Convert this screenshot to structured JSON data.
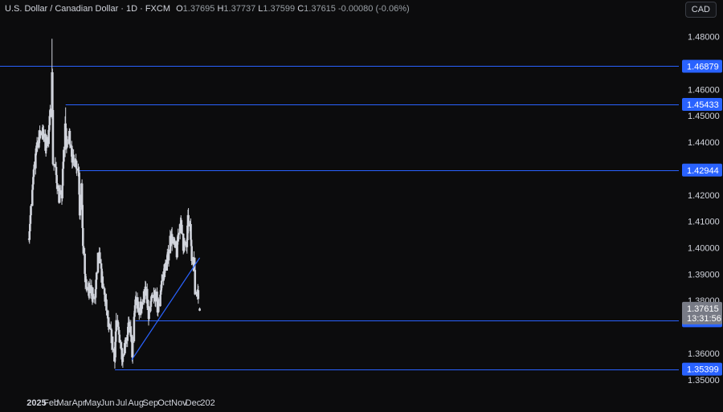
{
  "header": {
    "symbol": "U.S. Dollar / Canadian Dollar · 1D · FXCM",
    "o_label": "O",
    "o_value": "1.37695",
    "h_label": "H",
    "h_value": "1.37737",
    "l_label": "L",
    "l_value": "1.37599",
    "c_label": "C",
    "c_value": "1.37615",
    "change": "-0.00080 (-0.06%)"
  },
  "currency_button": "CAD",
  "countdown": "13:31:56",
  "colors": {
    "background": "#0c0c0d",
    "candle": "#d1d4dc",
    "level_line": "#2962ff",
    "label_bg": "#2962ff",
    "current_bg": "#787b86"
  },
  "chart_data": {
    "type": "candlestick",
    "ylim": [
      1.3475,
      1.4875
    ],
    "y_ticks": [
      "1.48000",
      "1.46000",
      "1.45000",
      "1.44000",
      "1.42000",
      "1.41000",
      "1.40000",
      "1.39000",
      "1.38000",
      "1.36000",
      "1.35000"
    ],
    "x_ticks": [
      "2025",
      "Feb",
      "Mar",
      "Apr",
      "May",
      "Jun",
      "Jul",
      "Aug",
      "Sep",
      "Oct",
      "Nov",
      "Dec",
      "202"
    ],
    "levels": [
      {
        "value": 1.46879,
        "label": "1.46879",
        "from": "2024-12-18"
      },
      {
        "value": 1.45433,
        "label": "1.45433",
        "from": "2025-03-04"
      },
      {
        "value": 1.42944,
        "label": "1.42944",
        "from": "2025-04-01"
      },
      {
        "value": 1.37233,
        "label": "1.37233",
        "from": "2025-07-31"
      },
      {
        "value": 1.35399,
        "label": "1.35399",
        "from": "2025-06-17"
      }
    ],
    "trendline": {
      "from": {
        "date": "2025-07-23",
        "value": 1.3575
      },
      "to": {
        "date": "2025-12-15",
        "value": 1.3962
      }
    },
    "current_price": {
      "value": 1.37615,
      "label": "1.37615"
    },
    "anchors": [
      [
        "2024-12-31",
        1.4385
      ],
      [
        "2025-01-08",
        1.443
      ],
      [
        "2025-01-13",
        1.445
      ],
      [
        "2025-01-20",
        1.438
      ],
      [
        "2025-01-27",
        1.444
      ],
      [
        "2025-01-31",
        1.452
      ],
      [
        "2025-02-03",
        1.469
      ],
      [
        "2025-02-05",
        1.433
      ],
      [
        "2025-02-10",
        1.43
      ],
      [
        "2025-02-18",
        1.419
      ],
      [
        "2025-02-24",
        1.42
      ],
      [
        "2025-03-03",
        1.448
      ],
      [
        "2025-03-06",
        1.438
      ],
      [
        "2025-03-12",
        1.443
      ],
      [
        "2025-03-19",
        1.433
      ],
      [
        "2025-03-25",
        1.433
      ],
      [
        "2025-04-01",
        1.429
      ],
      [
        "2025-04-03",
        1.414
      ],
      [
        "2025-04-07",
        1.426
      ],
      [
        "2025-04-09",
        1.405
      ],
      [
        "2025-04-14",
        1.388
      ],
      [
        "2025-04-21",
        1.383
      ],
      [
        "2025-04-28",
        1.384
      ],
      [
        "2025-05-05",
        1.379
      ],
      [
        "2025-05-12",
        1.396
      ],
      [
        "2025-05-16",
        1.396
      ],
      [
        "2025-05-22",
        1.385
      ],
      [
        "2025-05-28",
        1.38
      ],
      [
        "2025-06-03",
        1.37
      ],
      [
        "2025-06-10",
        1.366
      ],
      [
        "2025-06-16",
        1.357
      ],
      [
        "2025-06-20",
        1.372
      ],
      [
        "2025-06-27",
        1.366
      ],
      [
        "2025-07-03",
        1.359
      ],
      [
        "2025-07-09",
        1.364
      ],
      [
        "2025-07-16",
        1.37
      ],
      [
        "2025-07-21",
        1.368
      ],
      [
        "2025-07-24",
        1.36
      ],
      [
        "2025-07-31",
        1.381
      ],
      [
        "2025-08-07",
        1.376
      ],
      [
        "2025-08-14",
        1.379
      ],
      [
        "2025-08-21",
        1.384
      ],
      [
        "2025-08-28",
        1.374
      ],
      [
        "2025-09-04",
        1.38
      ],
      [
        "2025-09-11",
        1.382
      ],
      [
        "2025-09-17",
        1.376
      ],
      [
        "2025-09-24",
        1.386
      ],
      [
        "2025-10-01",
        1.392
      ],
      [
        "2025-10-08",
        1.396
      ],
      [
        "2025-10-14",
        1.405
      ],
      [
        "2025-10-21",
        1.401
      ],
      [
        "2025-10-27",
        1.398
      ],
      [
        "2025-10-31",
        1.407
      ],
      [
        "2025-11-04",
        1.41
      ],
      [
        "2025-11-10",
        1.401
      ],
      [
        "2025-11-17",
        1.4
      ],
      [
        "2025-11-20",
        1.41
      ],
      [
        "2025-11-25",
        1.407
      ],
      [
        "2025-11-28",
        1.396
      ],
      [
        "2025-12-03",
        1.396
      ],
      [
        "2025-12-05",
        1.383
      ],
      [
        "2025-12-10",
        1.384
      ],
      [
        "2025-12-15",
        1.37615
      ]
    ]
  }
}
